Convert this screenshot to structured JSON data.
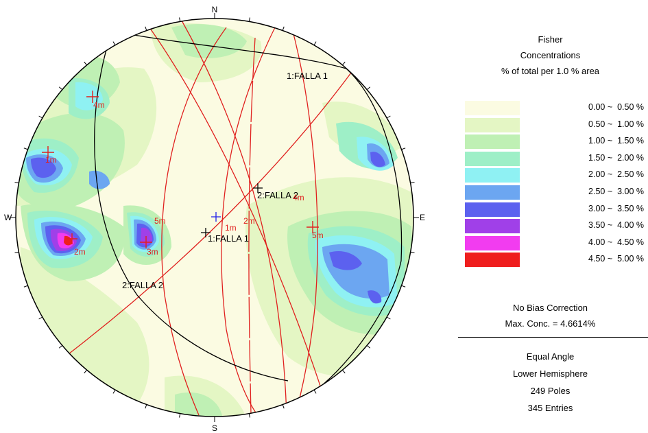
{
  "stereonet": {
    "compass": {
      "north": "N",
      "south": "S",
      "east": "E",
      "west": "W"
    },
    "contour_colors": [
      "#fbfbe2",
      "#e4f6c4",
      "#bff0b4",
      "#9eefc7",
      "#8ff1f3",
      "#6ca6f1",
      "#5c61ef",
      "#a040e8",
      "#f23cf0",
      "#ef1e1e"
    ],
    "plane_labels": [
      {
        "text": "1:FALLA 1",
        "color": "#000000"
      },
      {
        "text": "2:FALLA 2",
        "color": "#000000"
      },
      {
        "text": "1:FALLA 1",
        "color": "#000000"
      },
      {
        "text": "2:FALLA 2",
        "color": "#000000"
      }
    ],
    "mean_labels": [
      "4m",
      "1m",
      "5m",
      "2m",
      "3m",
      "1m",
      "2m",
      "4m",
      "5m"
    ],
    "colors": {
      "great_circle": "#e0201e",
      "primary": "#000000",
      "center_mark": "#1f1fe8"
    }
  },
  "legend": {
    "title_lines": [
      "Fisher",
      "Concentrations",
      "% of total per 1.0 % area"
    ],
    "items": [
      {
        "label": "0.00 ~  0.50 %",
        "color": "#fbfbe2"
      },
      {
        "label": "0.50 ~  1.00 %",
        "color": "#e4f6c4"
      },
      {
        "label": "1.00 ~  1.50 %",
        "color": "#bff0b4"
      },
      {
        "label": "1.50 ~  2.00 %",
        "color": "#9eefc7"
      },
      {
        "label": "2.00 ~  2.50 %",
        "color": "#8ff1f3"
      },
      {
        "label": "2.50 ~  3.00 %",
        "color": "#6ca6f1"
      },
      {
        "label": "3.00 ~  3.50 %",
        "color": "#5c61ef"
      },
      {
        "label": "3.50 ~  4.00 %",
        "color": "#a040e8"
      },
      {
        "label": "4.00 ~  4.50 %",
        "color": "#f23cf0"
      },
      {
        "label": "4.50 ~  5.00 %",
        "color": "#ef1e1e"
      }
    ]
  },
  "info": {
    "bias": "No Bias Correction",
    "max_conc": "Max. Conc. = 4.6614%",
    "projection": "Equal Angle",
    "hemisphere": "Lower Hemisphere",
    "poles": "249 Poles",
    "entries": "345 Entries"
  }
}
